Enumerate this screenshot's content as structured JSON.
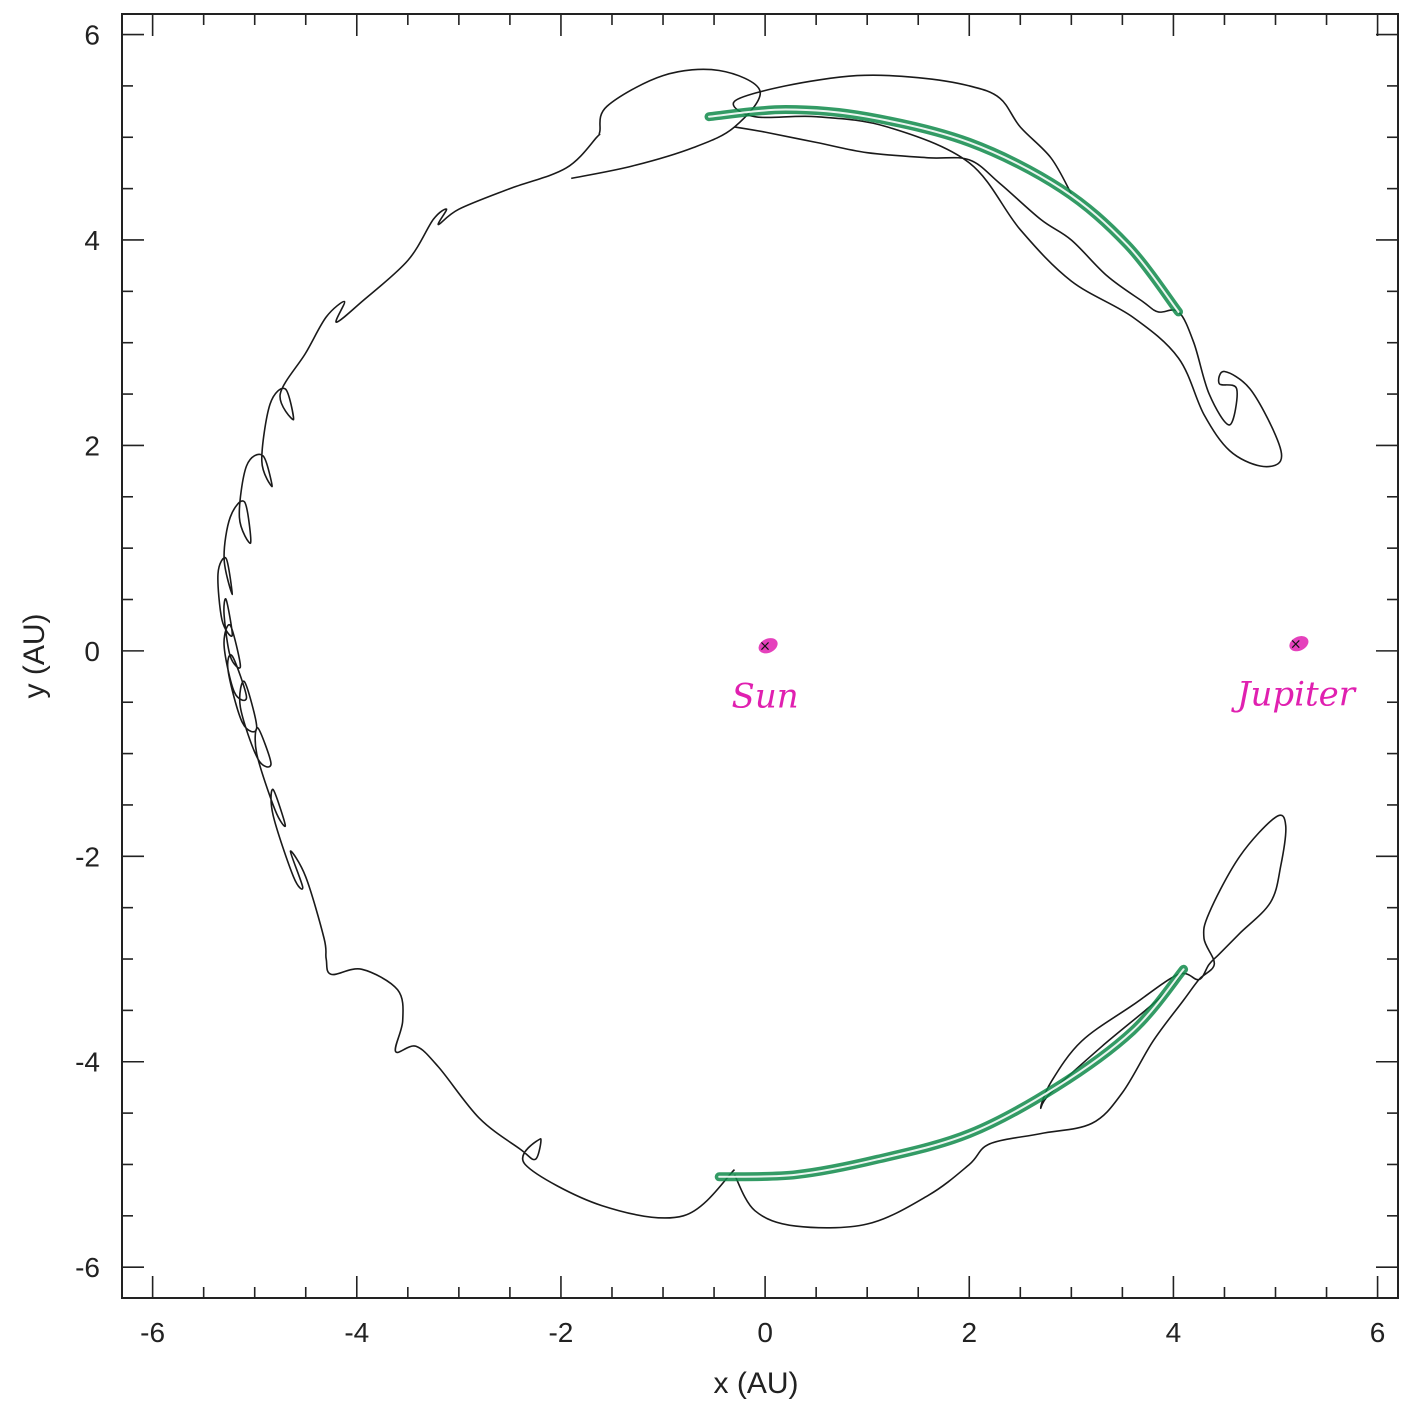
{
  "chart_data": {
    "type": "line",
    "title": "",
    "xlabel": "x (AU)",
    "ylabel": "y (AU)",
    "xlim": [
      -6.3,
      6.2
    ],
    "ylim": [
      -6.3,
      6.2
    ],
    "x_ticks": [
      "-6",
      "-4",
      "-2",
      "0",
      "2",
      "4",
      "6"
    ],
    "y_ticks": [
      "6",
      "4",
      "2",
      "0",
      "-2",
      "-4",
      "-6"
    ],
    "grid": false,
    "legend": "none",
    "colors": {
      "orbit": "#1a1a1a",
      "highlight": "#0f8a4a",
      "marker": "#e020b0",
      "axis": "#222222"
    },
    "bodies": [
      {
        "label": "Sun",
        "x": 0.0,
        "y": 0.05
      },
      {
        "label": "Jupiter",
        "x": 5.2,
        "y": 0.07
      }
    ],
    "series": [
      {
        "x": [
          -1.9,
          -1.3,
          -0.7,
          -0.3,
          -0.05,
          -0.45,
          -1.0,
          -1.55,
          -1.62,
          -1.65,
          -1.95,
          -2.5,
          -3.0,
          -3.2,
          -3.12,
          -3.25,
          -3.5,
          -3.95,
          -4.2,
          -4.12,
          -4.3,
          -4.5,
          -4.75,
          -4.62,
          -4.7,
          -4.85,
          -4.93,
          -4.83,
          -4.92,
          -5.08,
          -5.15,
          -5.04,
          -5.1,
          -5.24,
          -5.3,
          -5.22,
          -5.28,
          -5.36,
          -5.32,
          -5.22,
          -5.28,
          -5.3,
          -5.24,
          -5.14,
          -5.24,
          -5.3,
          -5.2,
          -5.08,
          -5.22,
          -5.26,
          -5.12,
          -4.98,
          -5.1,
          -5.14,
          -4.97,
          -4.84,
          -4.97,
          -4.98,
          -4.8,
          -4.7,
          -4.82,
          -4.82,
          -4.62,
          -4.53,
          -4.65,
          -4.5,
          -4.32,
          -4.3,
          -4.25,
          -3.95,
          -3.6,
          -3.55,
          -3.62,
          -3.42,
          -3.2,
          -2.8,
          -2.4,
          -2.25,
          -2.2,
          -2.35,
          -1.6,
          -0.8,
          -0.3
        ],
        "y": [
          4.6,
          4.72,
          4.9,
          5.1,
          5.45,
          5.65,
          5.6,
          5.3,
          5.05,
          5.0,
          4.7,
          4.5,
          4.3,
          4.15,
          4.3,
          4.2,
          3.8,
          3.4,
          3.2,
          3.4,
          3.25,
          2.9,
          2.5,
          2.25,
          2.55,
          2.4,
          1.85,
          1.6,
          1.9,
          1.8,
          1.3,
          1.05,
          1.45,
          1.3,
          0.9,
          0.55,
          0.9,
          0.75,
          0.3,
          0.15,
          0.5,
          0.35,
          -0.05,
          -0.15,
          0.25,
          0.05,
          -0.4,
          -0.45,
          -0.05,
          -0.2,
          -0.7,
          -0.75,
          -0.3,
          -0.55,
          -1.05,
          -1.1,
          -0.75,
          -1.0,
          -1.55,
          -1.7,
          -1.35,
          -1.6,
          -2.2,
          -2.3,
          -1.95,
          -2.2,
          -2.8,
          -3.0,
          -3.15,
          -3.1,
          -3.3,
          -3.6,
          -3.9,
          -3.85,
          -4.05,
          -4.55,
          -4.85,
          -4.95,
          -4.75,
          -5.0,
          -5.4,
          -5.5,
          -5.05
        ]
      },
      {
        "x": [
          -0.3,
          0.0,
          0.5,
          1.0,
          1.6,
          2.0,
          2.3,
          2.7,
          3.0,
          3.35,
          3.7,
          3.85,
          4.05,
          4.2,
          4.35,
          4.55,
          4.62,
          4.45,
          4.5,
          4.75,
          5.0,
          5.05,
          4.85,
          4.55,
          4.3,
          4.05,
          3.6,
          3.0,
          2.5,
          2.0,
          1.2,
          0.5,
          -0.1,
          -0.3,
          0.2,
          0.9,
          1.5,
          2.0,
          2.3,
          2.5,
          2.8,
          3.0
        ],
        "y": [
          5.1,
          5.05,
          4.95,
          4.85,
          4.8,
          4.78,
          4.55,
          4.2,
          4.0,
          3.65,
          3.4,
          3.3,
          3.3,
          3.0,
          2.5,
          2.2,
          2.55,
          2.6,
          2.72,
          2.55,
          2.1,
          1.85,
          1.8,
          1.95,
          2.3,
          2.85,
          3.25,
          3.6,
          4.1,
          4.75,
          5.1,
          5.2,
          5.2,
          5.35,
          5.5,
          5.6,
          5.58,
          5.5,
          5.38,
          5.1,
          4.8,
          4.45
        ]
      },
      {
        "x": [
          -0.3,
          -0.1,
          0.3,
          1.0,
          1.6,
          2.0,
          2.2,
          2.7,
          3.2,
          3.5,
          3.8,
          4.1,
          4.25,
          4.4,
          4.3,
          4.35,
          4.65,
          5.0,
          5.1,
          5.05,
          4.95,
          4.65,
          4.45,
          4.35,
          4.25,
          4.05,
          3.6,
          3.1,
          2.8,
          2.7,
          2.8,
          3.3,
          3.9,
          4.1
        ],
        "y": [
          -5.1,
          -5.45,
          -5.6,
          -5.58,
          -5.3,
          -5.0,
          -4.8,
          -4.7,
          -4.6,
          -4.3,
          -3.8,
          -3.4,
          -3.2,
          -3.05,
          -2.8,
          -2.55,
          -2.0,
          -1.62,
          -1.7,
          -2.1,
          -2.45,
          -2.75,
          -2.95,
          -3.05,
          -3.2,
          -3.15,
          -3.45,
          -3.8,
          -4.2,
          -4.45,
          -4.3,
          -3.85,
          -3.35,
          -3.1
        ]
      }
    ],
    "highlights": [
      {
        "x": [
          -0.55,
          0.2,
          1.0,
          2.0,
          2.9,
          3.55,
          4.05
        ],
        "y": [
          5.2,
          5.27,
          5.2,
          4.95,
          4.5,
          3.95,
          3.3
        ]
      },
      {
        "x": [
          -0.45,
          0.3,
          1.1,
          2.0,
          2.85,
          3.6,
          4.1
        ],
        "y": [
          -5.12,
          -5.1,
          -4.95,
          -4.7,
          -4.25,
          -3.7,
          -3.1
        ]
      }
    ]
  }
}
